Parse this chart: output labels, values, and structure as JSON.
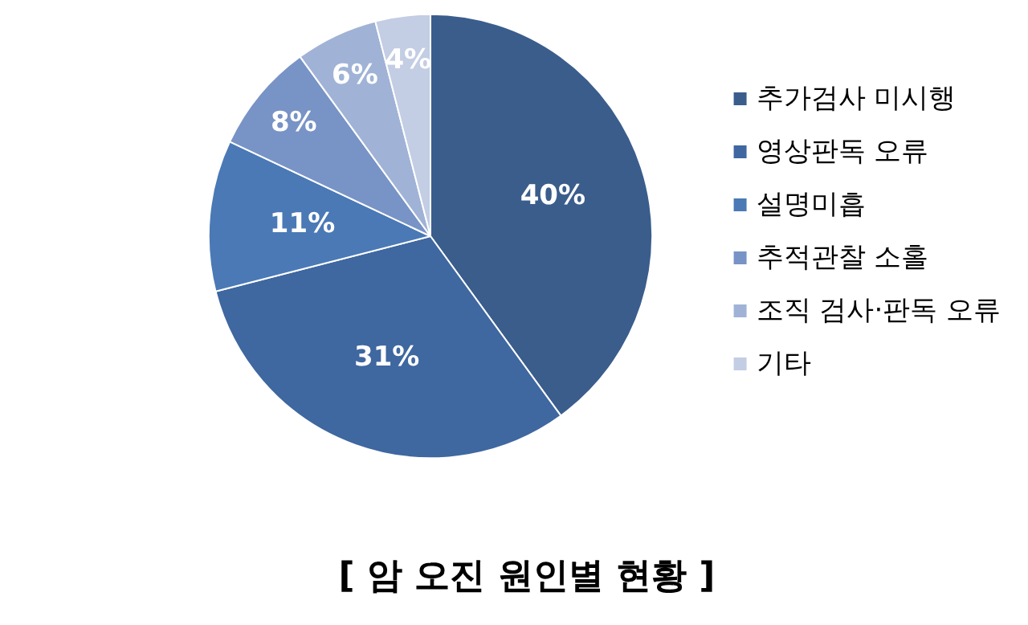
{
  "chart_data": {
    "type": "pie",
    "title": "[ 암 오진 원인별 현황 ]",
    "categories": [
      "추가검사 미시행",
      "영상판독 오류",
      "설명미흡",
      "추적관찰 소홀",
      "조직 검사·판독 오류",
      "기타"
    ],
    "values": [
      40,
      31,
      11,
      8,
      6,
      4
    ],
    "colors": [
      "#3a5d8c",
      "#3f67a0",
      "#4a79b6",
      "#7893c6",
      "#a0b3d6",
      "#c3cde3"
    ],
    "value_labels": [
      "40%",
      "31%",
      "11%",
      "8%",
      "6%",
      "4%"
    ],
    "legend": "right"
  }
}
